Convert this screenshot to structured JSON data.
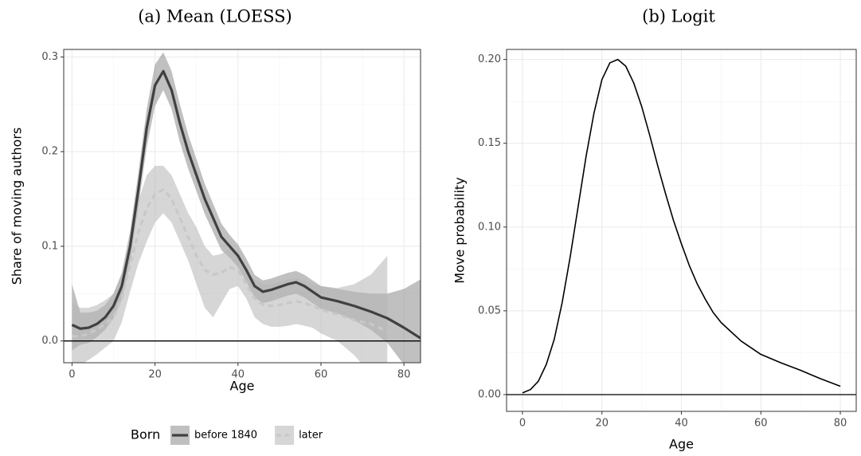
{
  "chart_data": [
    {
      "type": "line",
      "title": "(a) Mean (LOESS)",
      "x_label": "Age",
      "y_label": "Share of moving authors",
      "x": [
        0,
        2,
        4,
        6,
        8,
        10,
        12,
        14,
        16,
        18,
        20,
        22,
        24,
        26,
        28,
        30,
        32,
        34,
        36,
        38,
        40,
        42,
        44,
        46,
        48,
        50,
        52,
        54,
        56,
        58,
        60,
        64,
        68,
        72,
        76,
        80,
        84
      ],
      "series": [
        {
          "name": "before 1840",
          "color": "#404040",
          "band_color": "#8c8c8c",
          "dashed": false,
          "values": [
            0.017,
            0.013,
            0.014,
            0.018,
            0.025,
            0.037,
            0.058,
            0.1,
            0.16,
            0.225,
            0.27,
            0.285,
            0.265,
            0.23,
            0.2,
            0.175,
            0.15,
            0.13,
            0.11,
            0.1,
            0.09,
            0.075,
            0.058,
            0.052,
            0.054,
            0.057,
            0.06,
            0.062,
            0.058,
            0.052,
            0.046,
            0.042,
            0.037,
            0.031,
            0.024,
            0.014,
            0.003
          ],
          "upper": [
            0.06,
            0.03,
            0.03,
            0.032,
            0.038,
            0.05,
            0.072,
            0.116,
            0.178,
            0.245,
            0.292,
            0.305,
            0.285,
            0.25,
            0.218,
            0.192,
            0.166,
            0.145,
            0.124,
            0.112,
            0.102,
            0.087,
            0.07,
            0.064,
            0.066,
            0.069,
            0.072,
            0.074,
            0.07,
            0.064,
            0.058,
            0.055,
            0.052,
            0.05,
            0.05,
            0.055,
            0.065
          ],
          "lower": [
            -0.01,
            -0.004,
            -0.002,
            0.004,
            0.012,
            0.024,
            0.044,
            0.084,
            0.142,
            0.205,
            0.248,
            0.265,
            0.245,
            0.21,
            0.182,
            0.158,
            0.134,
            0.115,
            0.096,
            0.088,
            0.078,
            0.063,
            0.046,
            0.04,
            0.042,
            0.045,
            0.048,
            0.05,
            0.046,
            0.04,
            0.034,
            0.029,
            0.022,
            0.012,
            -0.002,
            -0.025,
            -0.06
          ]
        },
        {
          "name": "later",
          "color": "#c8c8c8",
          "band_color": "#b4b4b4",
          "dashed": true,
          "values": [
            0.005,
            0.005,
            0.008,
            0.012,
            0.018,
            0.025,
            0.045,
            0.08,
            0.115,
            0.14,
            0.155,
            0.16,
            0.15,
            0.13,
            0.11,
            0.09,
            0.075,
            0.07,
            0.072,
            0.078,
            0.075,
            0.06,
            0.045,
            0.038,
            0.037,
            0.038,
            0.04,
            0.042,
            0.04,
            0.037,
            0.033,
            0.028,
            0.022,
            0.018,
            0.01,
            null,
            null
          ],
          "upper": [
            0.04,
            0.035,
            0.035,
            0.038,
            0.043,
            0.05,
            0.07,
            0.108,
            0.148,
            0.175,
            0.185,
            0.185,
            0.175,
            0.155,
            0.135,
            0.12,
            0.1,
            0.09,
            0.092,
            0.098,
            0.09,
            0.075,
            0.065,
            0.06,
            0.06,
            0.062,
            0.065,
            0.066,
            0.064,
            0.06,
            0.058,
            0.056,
            0.06,
            0.07,
            0.09,
            null,
            null
          ],
          "lower": [
            -0.03,
            -0.025,
            -0.02,
            -0.014,
            -0.007,
            0.0,
            0.02,
            0.052,
            0.082,
            0.105,
            0.125,
            0.135,
            0.125,
            0.105,
            0.085,
            0.06,
            0.035,
            0.025,
            0.04,
            0.055,
            0.058,
            0.045,
            0.025,
            0.018,
            0.015,
            0.015,
            0.016,
            0.018,
            0.016,
            0.014,
            0.008,
            0.0,
            -0.015,
            -0.035,
            -0.05,
            null,
            null
          ]
        }
      ],
      "xlim": [
        -2,
        84
      ],
      "xticks": [
        0,
        20,
        40,
        60,
        80
      ],
      "ylim": [
        -0.023,
        0.308
      ],
      "yticks": [
        {
          "value": 0,
          "label": "0.0"
        },
        0.1,
        0.2,
        0.3
      ],
      "hline": 0,
      "grid": true,
      "legend_title": "Born",
      "legend": "bottom"
    },
    {
      "type": "line",
      "title": "(b) Logit",
      "x_label": "Age",
      "y_label": "Move probability",
      "x": [
        0,
        2,
        4,
        6,
        8,
        10,
        12,
        14,
        16,
        18,
        20,
        22,
        24,
        26,
        28,
        30,
        32,
        34,
        36,
        38,
        40,
        42,
        44,
        46,
        48,
        50,
        55,
        60,
        65,
        70,
        75,
        80
      ],
      "series": [
        {
          "name": null,
          "color": "#000000",
          "dashed": false,
          "values": [
            0.001,
            0.003,
            0.008,
            0.018,
            0.033,
            0.055,
            0.082,
            0.112,
            0.142,
            0.168,
            0.188,
            0.198,
            0.2,
            0.196,
            0.186,
            0.172,
            0.155,
            0.137,
            0.12,
            0.104,
            0.09,
            0.077,
            0.066,
            0.057,
            0.049,
            0.043,
            0.032,
            0.024,
            0.019,
            0.0145,
            0.0095,
            0.005
          ]
        }
      ],
      "xlim": [
        -4,
        84
      ],
      "xticks": [
        0,
        20,
        40,
        60,
        80
      ],
      "ylim": [
        -0.01,
        0.206
      ],
      "yticks": [
        {
          "value": 0,
          "label": "0.00"
        },
        0.05,
        {
          "value": 0.1,
          "label": "0.10"
        },
        0.15,
        {
          "value": 0.2,
          "label": "0.20"
        }
      ],
      "hline": 0,
      "grid": true
    }
  ]
}
